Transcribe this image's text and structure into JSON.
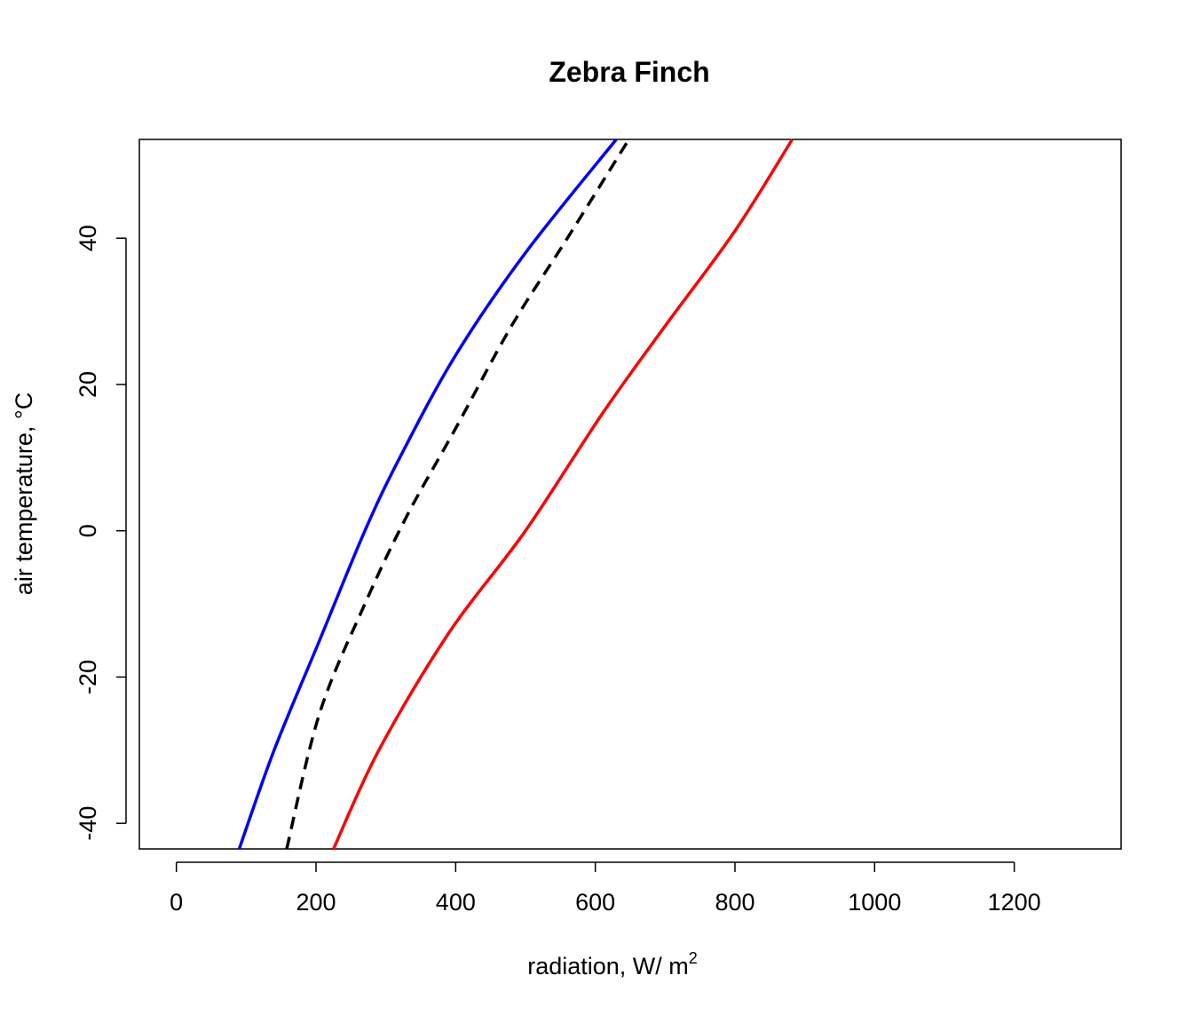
{
  "chart_data": {
    "type": "line",
    "title": "Zebra Finch",
    "xlabel": "radiation, W/ m",
    "xlabel_superscript": "2",
    "ylabel": "air temperature, °C",
    "xlim": [
      -53,
      1353
    ],
    "ylim": [
      -43.5,
      53.5
    ],
    "xticks": [
      0,
      200,
      400,
      600,
      800,
      1000,
      1200
    ],
    "yticks": [
      -40,
      -20,
      0,
      20,
      40
    ],
    "grid": false,
    "series": [
      {
        "color": "#0000ff",
        "dash": "solid",
        "points": [
          [
            90,
            -43.5
          ],
          [
            140,
            -30
          ],
          [
            205,
            -15
          ],
          [
            270,
            0
          ],
          [
            320,
            10
          ],
          [
            400,
            24
          ],
          [
            500,
            38
          ],
          [
            630,
            53.5
          ]
        ]
      },
      {
        "color": "#000000",
        "dash": "dashed",
        "points": [
          [
            158,
            -43.5
          ],
          [
            205,
            -25
          ],
          [
            270,
            -10
          ],
          [
            330,
            2
          ],
          [
            400,
            14
          ],
          [
            480,
            28
          ],
          [
            560,
            40
          ],
          [
            648,
            53.5
          ]
        ]
      },
      {
        "color": "#ff0000",
        "dash": "solid",
        "points": [
          [
            225,
            -43.5
          ],
          [
            290,
            -30
          ],
          [
            390,
            -14
          ],
          [
            500,
            0
          ],
          [
            610,
            16
          ],
          [
            700,
            28
          ],
          [
            800,
            41
          ],
          [
            882,
            53.5
          ]
        ]
      }
    ]
  }
}
